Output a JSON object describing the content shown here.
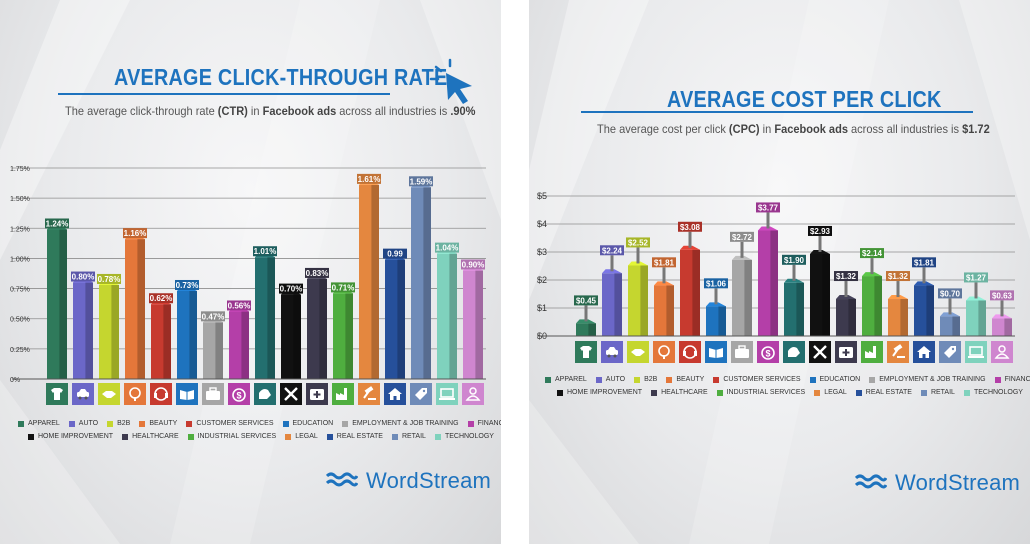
{
  "colors": {
    "title": "#1e73be",
    "categories": [
      "#2f7a5b",
      "#6b67c8",
      "#c5d62f",
      "#e4773a",
      "#c73a2f",
      "#1e73be",
      "#a6a6a6",
      "#b43fa8",
      "#236f6f",
      "#111111",
      "#3d3a4e",
      "#4fae3f",
      "#e4873f",
      "#26509b",
      "#6f8bb8",
      "#7fd2bd",
      "#cf86cf"
    ]
  },
  "brand": {
    "name": "WordStream"
  },
  "categories": [
    "Apparel",
    "Auto",
    "B2B",
    "Beauty",
    "Customer Services",
    "Education",
    "Employment & Job Training",
    "Finance & Insurance",
    "Fitness",
    "Home Improvement",
    "Healthcare",
    "Industrial Services",
    "Legal",
    "Real Estate",
    "Retail",
    "Technology",
    "Travel & Hospitality"
  ],
  "category_icons": [
    "tshirt-icon",
    "car-icon",
    "handshake-icon",
    "lipstick-mirror-icon",
    "headset-icon",
    "book-icon",
    "briefcase-icon",
    "money-bag-icon",
    "flexed-arm-icon",
    "tools-icon",
    "medical-kit-icon",
    "factory-icon",
    "gavel-icon",
    "house-icon",
    "price-tag-icon",
    "laptop-icon",
    "traveler-icon"
  ],
  "ctr": {
    "title": "AVERAGE CLICK-THROUGH RATE",
    "subtitle_pre": "The average click-through rate ",
    "subtitle_b1": "(CTR)",
    "subtitle_mid": " in ",
    "subtitle_b2": "Facebook ads",
    "subtitle_post": " across all industries is ",
    "subtitle_b3": ".90%"
  },
  "cpc": {
    "title": "AVERAGE COST PER CLICK",
    "subtitle_pre": "The average cost per click ",
    "subtitle_b1": "(CPC)",
    "subtitle_mid": " in ",
    "subtitle_b2": "Facebook ads",
    "subtitle_post": " across all industries is ",
    "subtitle_b3": "$1.72"
  },
  "chart_data": [
    {
      "type": "bar",
      "title": "AVERAGE CLICK-THROUGH RATE",
      "categories": [
        "Apparel",
        "Auto",
        "B2B",
        "Beauty",
        "Customer Services",
        "Education",
        "Employment & Job Training",
        "Finance & Insurance",
        "Fitness",
        "Home Improvement",
        "Healthcare",
        "Industrial Services",
        "Legal",
        "Real Estate",
        "Retail",
        "Technology",
        "Travel & Hospitality"
      ],
      "values": [
        1.24,
        0.8,
        0.78,
        1.16,
        0.62,
        0.73,
        0.47,
        0.56,
        1.01,
        0.7,
        0.83,
        0.71,
        1.61,
        0.99,
        1.59,
        1.04,
        0.9
      ],
      "data_labels": [
        "1.24%",
        "0.80%",
        "0.78%",
        "1.16%",
        "0.62%",
        "0.73%",
        "0.47%",
        "0.56%",
        "1.01%",
        "0.70%",
        "0.83%",
        "0.71%",
        "1.61%",
        "0.99",
        "1.59%",
        "1.04%",
        "0.90%"
      ],
      "yticks": [
        "0%",
        "0.25%",
        "0.50%",
        "0.75%",
        "1.00%",
        "1.25%",
        "1.50%",
        "1.75%"
      ],
      "ylim": [
        0,
        1.75
      ],
      "grid": true,
      "legend": "bottom"
    },
    {
      "type": "bar",
      "title": "AVERAGE COST PER CLICK",
      "categories": [
        "Apparel",
        "Auto",
        "B2B",
        "Beauty",
        "Customer Services",
        "Education",
        "Employment & Job Training",
        "Finance & Insurance",
        "Fitness",
        "Home Improvement",
        "Healthcare",
        "Industrial Services",
        "Legal",
        "Real Estate",
        "Retail",
        "Technology",
        "Travel & Hospitality"
      ],
      "values": [
        0.45,
        2.24,
        2.52,
        1.81,
        3.08,
        1.06,
        2.72,
        3.77,
        1.9,
        2.93,
        1.32,
        2.14,
        1.32,
        1.81,
        0.7,
        1.27,
        0.63
      ],
      "data_labels": [
        "$0.45",
        "$2.24",
        "$2.52",
        "$1.81",
        "$3.08",
        "$1.06",
        "$2.72",
        "$3.77",
        "$1.90",
        "$2.93",
        "$1.32",
        "$2.14",
        "$1.32",
        "$1.81",
        "$0.70",
        "$1.27",
        "$0.63"
      ],
      "yticks": [
        "$0",
        "$1",
        "$2",
        "$3",
        "$4",
        "$5"
      ],
      "ylim": [
        0,
        5
      ],
      "grid": true,
      "legend": "bottom"
    }
  ]
}
